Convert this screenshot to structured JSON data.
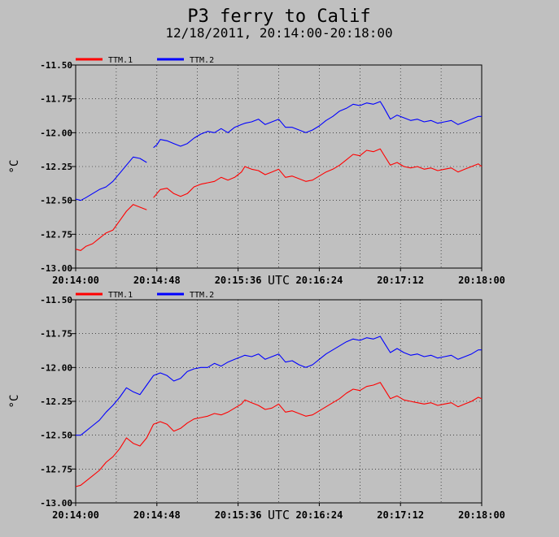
{
  "title": "P3 ferry to Calif",
  "subtitle": "12/18/2011, 20:14:00-20:18:00",
  "colors": {
    "background": "#c0c0c0",
    "plot_background": "#c0c0c0",
    "ttm1": "#ff0000",
    "ttm2": "#0000ff",
    "axis": "#000000",
    "grid": "#000000"
  },
  "chart_data": [
    {
      "type": "line",
      "xlabel": "UTC",
      "ylabel": "°C",
      "xlim": [
        0,
        240
      ],
      "ylim": [
        -13.0,
        -11.5
      ],
      "xticks": [
        0,
        48,
        96,
        144,
        192,
        240
      ],
      "xtick_labels": [
        "20:14:00",
        "20:14:48",
        "20:15:36",
        "20:16:24",
        "20:17:12",
        "20:18:00"
      ],
      "yticks": [
        -11.5,
        -11.75,
        -12.0,
        -12.25,
        -12.5,
        -12.75,
        -13.0
      ],
      "ytick_labels": [
        "-11.50",
        "-11.75",
        "-12.00",
        "-12.25",
        "-12.50",
        "-12.75",
        "-13.00"
      ],
      "grid": true,
      "legend": "top-left",
      "series": [
        {
          "name": "TTM.1",
          "color": "#ff0000",
          "x": [
            0,
            3,
            6,
            10,
            14,
            18,
            22,
            26,
            30,
            34,
            38,
            42,
            46,
            48,
            50,
            54,
            58,
            62,
            66,
            70,
            74,
            78,
            82,
            86,
            90,
            94,
            98,
            100,
            104,
            108,
            112,
            116,
            120,
            124,
            128,
            132,
            136,
            140,
            144,
            148,
            152,
            156,
            160,
            164,
            168,
            172,
            176,
            180,
            182,
            186,
            190,
            194,
            198,
            202,
            206,
            210,
            214,
            218,
            222,
            226,
            230,
            234,
            238,
            240
          ],
          "gaps_after_x": [
            42
          ],
          "y": [
            -12.86,
            -12.87,
            -12.84,
            -12.82,
            -12.78,
            -12.74,
            -12.72,
            -12.65,
            -12.58,
            -12.53,
            -12.55,
            -12.57,
            -12.48,
            -12.45,
            -12.42,
            -12.41,
            -12.45,
            -12.47,
            -12.45,
            -12.4,
            -12.38,
            -12.37,
            -12.36,
            -12.33,
            -12.35,
            -12.33,
            -12.29,
            -12.25,
            -12.27,
            -12.28,
            -12.31,
            -12.29,
            -12.27,
            -12.33,
            -12.32,
            -12.34,
            -12.36,
            -12.35,
            -12.32,
            -12.29,
            -12.27,
            -12.24,
            -12.2,
            -12.16,
            -12.17,
            -12.13,
            -12.14,
            -12.12,
            -12.16,
            -12.24,
            -12.22,
            -12.25,
            -12.26,
            -12.25,
            -12.27,
            -12.26,
            -12.28,
            -12.27,
            -12.26,
            -12.29,
            -12.27,
            -12.25,
            -12.23,
            -12.25
          ]
        },
        {
          "name": "TTM.2",
          "color": "#0000ff",
          "x": [
            0,
            3,
            6,
            10,
            14,
            18,
            22,
            26,
            30,
            34,
            38,
            42,
            46,
            48,
            50,
            54,
            58,
            62,
            66,
            70,
            74,
            78,
            82,
            86,
            90,
            94,
            98,
            100,
            104,
            108,
            112,
            116,
            120,
            124,
            128,
            132,
            136,
            140,
            144,
            148,
            152,
            156,
            160,
            164,
            168,
            172,
            176,
            180,
            182,
            186,
            190,
            194,
            198,
            202,
            206,
            210,
            214,
            218,
            222,
            226,
            230,
            234,
            238,
            240
          ],
          "gaps_after_x": [
            42
          ],
          "y": [
            -12.49,
            -12.5,
            -12.48,
            -12.45,
            -12.42,
            -12.4,
            -12.36,
            -12.3,
            -12.24,
            -12.18,
            -12.19,
            -12.22,
            -12.11,
            -12.09,
            -12.05,
            -12.06,
            -12.08,
            -12.1,
            -12.08,
            -12.04,
            -12.01,
            -11.99,
            -12.0,
            -11.97,
            -12.0,
            -11.96,
            -11.94,
            -11.93,
            -11.92,
            -11.9,
            -11.94,
            -11.92,
            -11.9,
            -11.96,
            -11.96,
            -11.98,
            -12.0,
            -11.98,
            -11.95,
            -11.91,
            -11.88,
            -11.84,
            -11.82,
            -11.79,
            -11.8,
            -11.78,
            -11.79,
            -11.77,
            -11.81,
            -11.9,
            -11.87,
            -11.89,
            -11.91,
            -11.9,
            -11.92,
            -11.91,
            -11.93,
            -11.92,
            -11.91,
            -11.94,
            -11.92,
            -11.9,
            -11.88,
            -11.88
          ]
        }
      ]
    },
    {
      "type": "line",
      "xlabel": "UTC",
      "ylabel": "°C",
      "xlim": [
        0,
        240
      ],
      "ylim": [
        -13.0,
        -11.5
      ],
      "xticks": [
        0,
        48,
        96,
        144,
        192,
        240
      ],
      "xtick_labels": [
        "20:14:00",
        "20:14:48",
        "20:15:36",
        "20:16:24",
        "20:17:12",
        "20:18:00"
      ],
      "yticks": [
        -11.5,
        -11.75,
        -12.0,
        -12.25,
        -12.5,
        -12.75,
        -13.0
      ],
      "ytick_labels": [
        "-11.50",
        "-11.75",
        "-12.00",
        "-12.25",
        "-12.50",
        "-12.75",
        "-13.00"
      ],
      "grid": true,
      "legend": "top-left",
      "series": [
        {
          "name": "TTM.1",
          "color": "#ff0000",
          "x": [
            0,
            3,
            6,
            10,
            14,
            18,
            22,
            26,
            30,
            34,
            38,
            42,
            46,
            50,
            54,
            58,
            62,
            66,
            70,
            74,
            78,
            82,
            86,
            90,
            94,
            98,
            100,
            104,
            108,
            112,
            116,
            120,
            124,
            128,
            132,
            136,
            140,
            144,
            148,
            152,
            156,
            160,
            164,
            168,
            172,
            176,
            180,
            182,
            186,
            190,
            194,
            198,
            202,
            206,
            210,
            214,
            218,
            222,
            226,
            230,
            234,
            238,
            240
          ],
          "y": [
            -12.88,
            -12.87,
            -12.84,
            -12.8,
            -12.76,
            -12.7,
            -12.66,
            -12.6,
            -12.52,
            -12.56,
            -12.58,
            -12.52,
            -12.42,
            -12.4,
            -12.42,
            -12.47,
            -12.45,
            -12.41,
            -12.38,
            -12.37,
            -12.36,
            -12.34,
            -12.35,
            -12.33,
            -12.3,
            -12.27,
            -12.24,
            -12.26,
            -12.28,
            -12.31,
            -12.3,
            -12.27,
            -12.33,
            -12.32,
            -12.34,
            -12.36,
            -12.35,
            -12.32,
            -12.29,
            -12.26,
            -12.23,
            -12.19,
            -12.16,
            -12.17,
            -12.14,
            -12.13,
            -12.11,
            -12.15,
            -12.23,
            -12.21,
            -12.24,
            -12.25,
            -12.26,
            -12.27,
            -12.26,
            -12.28,
            -12.27,
            -12.26,
            -12.29,
            -12.27,
            -12.25,
            -12.22,
            -12.23
          ]
        },
        {
          "name": "TTM.2",
          "color": "#0000ff",
          "x": [
            0,
            3,
            6,
            10,
            14,
            18,
            22,
            26,
            30,
            34,
            38,
            42,
            46,
            50,
            54,
            58,
            62,
            66,
            70,
            74,
            78,
            82,
            86,
            90,
            94,
            98,
            100,
            104,
            108,
            112,
            116,
            120,
            124,
            128,
            132,
            136,
            140,
            144,
            148,
            152,
            156,
            160,
            164,
            168,
            172,
            176,
            180,
            182,
            186,
            190,
            194,
            198,
            202,
            206,
            210,
            214,
            218,
            222,
            226,
            230,
            234,
            238,
            240
          ],
          "y": [
            -12.5,
            -12.5,
            -12.47,
            -12.43,
            -12.39,
            -12.33,
            -12.28,
            -12.22,
            -12.15,
            -12.18,
            -12.2,
            -12.13,
            -12.06,
            -12.04,
            -12.06,
            -12.1,
            -12.08,
            -12.03,
            -12.01,
            -12.0,
            -12.0,
            -11.97,
            -11.99,
            -11.96,
            -11.94,
            -11.92,
            -11.91,
            -11.92,
            -11.9,
            -11.94,
            -11.92,
            -11.9,
            -11.96,
            -11.95,
            -11.98,
            -12.0,
            -11.98,
            -11.94,
            -11.9,
            -11.87,
            -11.84,
            -11.81,
            -11.79,
            -11.8,
            -11.78,
            -11.79,
            -11.77,
            -11.81,
            -11.89,
            -11.86,
            -11.89,
            -11.91,
            -11.9,
            -11.92,
            -11.91,
            -11.93,
            -11.92,
            -11.91,
            -11.94,
            -11.92,
            -11.9,
            -11.87,
            -11.87
          ]
        }
      ]
    }
  ]
}
